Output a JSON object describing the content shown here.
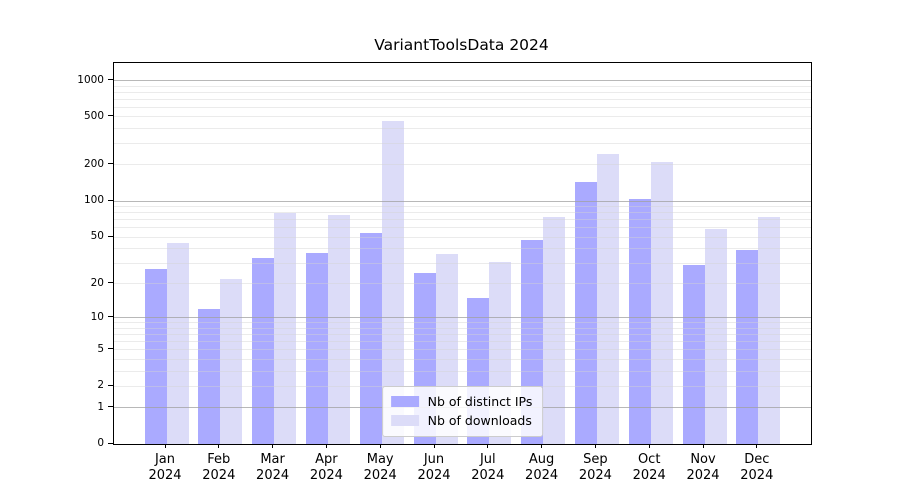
{
  "title": "VariantToolsData 2024",
  "chart_data": {
    "type": "bar",
    "title": "VariantToolsData 2024",
    "y_scale": "log1p",
    "y_ticks": [
      0,
      1,
      2,
      5,
      10,
      20,
      50,
      100,
      200,
      500,
      1000
    ],
    "ylim": [
      0,
      1400
    ],
    "grid": true,
    "legend_position": "inside-bottom-center",
    "categories": [
      "Jan 2024",
      "Feb 2024",
      "Mar 2024",
      "Apr 2024",
      "May 2024",
      "Jun 2024",
      "Jul 2024",
      "Aug 2024",
      "Sep 2024",
      "Oct 2024",
      "Nov 2024",
      "Dec 2024"
    ],
    "series": [
      {
        "name": "Nb of distinct IPs",
        "color": "#aaaaff",
        "values": [
          27,
          12,
          33,
          37,
          54,
          25,
          15,
          47,
          144,
          105,
          29,
          39
        ]
      },
      {
        "name": "Nb of downloads",
        "color": "#dcdcf8",
        "values": [
          45,
          22,
          80,
          77,
          460,
          36,
          31,
          74,
          245,
          210,
          59,
          74
        ]
      }
    ]
  }
}
